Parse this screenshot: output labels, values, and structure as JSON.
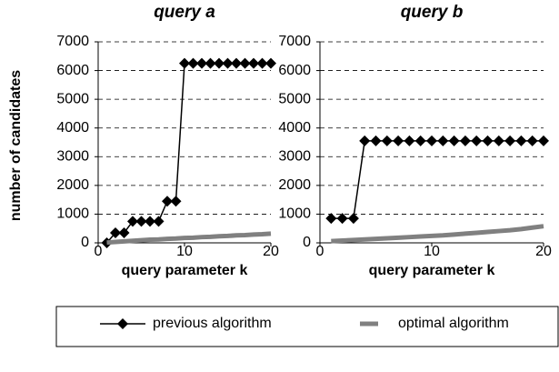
{
  "chart_data": [
    {
      "type": "line",
      "title": "query a",
      "x_label": "query parameter k",
      "y_label": "number of candidates",
      "x": [
        1,
        2,
        3,
        4,
        5,
        6,
        7,
        8,
        9,
        10,
        11,
        12,
        13,
        14,
        15,
        16,
        17,
        18,
        19,
        20
      ],
      "series": [
        {
          "name": "previous algorithm",
          "color": "#000000",
          "values": [
            0,
            350,
            350,
            750,
            750,
            750,
            750,
            1450,
            1450,
            6250,
            6250,
            6250,
            6250,
            6250,
            6250,
            6250,
            6250,
            6250,
            6250,
            6250
          ]
        },
        {
          "name": "optimal algorithm",
          "color": "#808080",
          "values": [
            10,
            30,
            50,
            70,
            90,
            110,
            120,
            140,
            150,
            170,
            180,
            200,
            210,
            230,
            240,
            260,
            270,
            290,
            300,
            320
          ]
        }
      ],
      "xlim": [
        0,
        20
      ],
      "xticks": [
        0,
        10,
        20
      ],
      "ylim": [
        0,
        7000
      ],
      "yticks": [
        0,
        1000,
        2000,
        3000,
        4000,
        5000,
        6000,
        7000
      ],
      "grid": true
    },
    {
      "type": "line",
      "title": "query b",
      "x_label": "query parameter k",
      "x": [
        1,
        2,
        3,
        4,
        5,
        6,
        7,
        8,
        9,
        10,
        11,
        12,
        13,
        14,
        15,
        16,
        17,
        18,
        19,
        20
      ],
      "series": [
        {
          "name": "previous algorithm",
          "color": "#000000",
          "values": [
            850,
            850,
            850,
            3550,
            3550,
            3550,
            3550,
            3550,
            3550,
            3550,
            3550,
            3550,
            3550,
            3550,
            3550,
            3550,
            3550,
            3550,
            3550,
            3550
          ]
        },
        {
          "name": "optimal algorithm",
          "color": "#808080",
          "values": [
            60,
            80,
            100,
            120,
            140,
            160,
            180,
            200,
            220,
            240,
            260,
            290,
            320,
            350,
            380,
            410,
            440,
            480,
            530,
            580
          ]
        }
      ],
      "xlim": [
        0,
        20
      ],
      "xticks": [
        0,
        10,
        20
      ],
      "ylim": [
        0,
        7000
      ],
      "yticks": [
        0,
        1000,
        2000,
        3000,
        4000,
        5000,
        6000,
        7000
      ],
      "grid": true
    }
  ]
}
